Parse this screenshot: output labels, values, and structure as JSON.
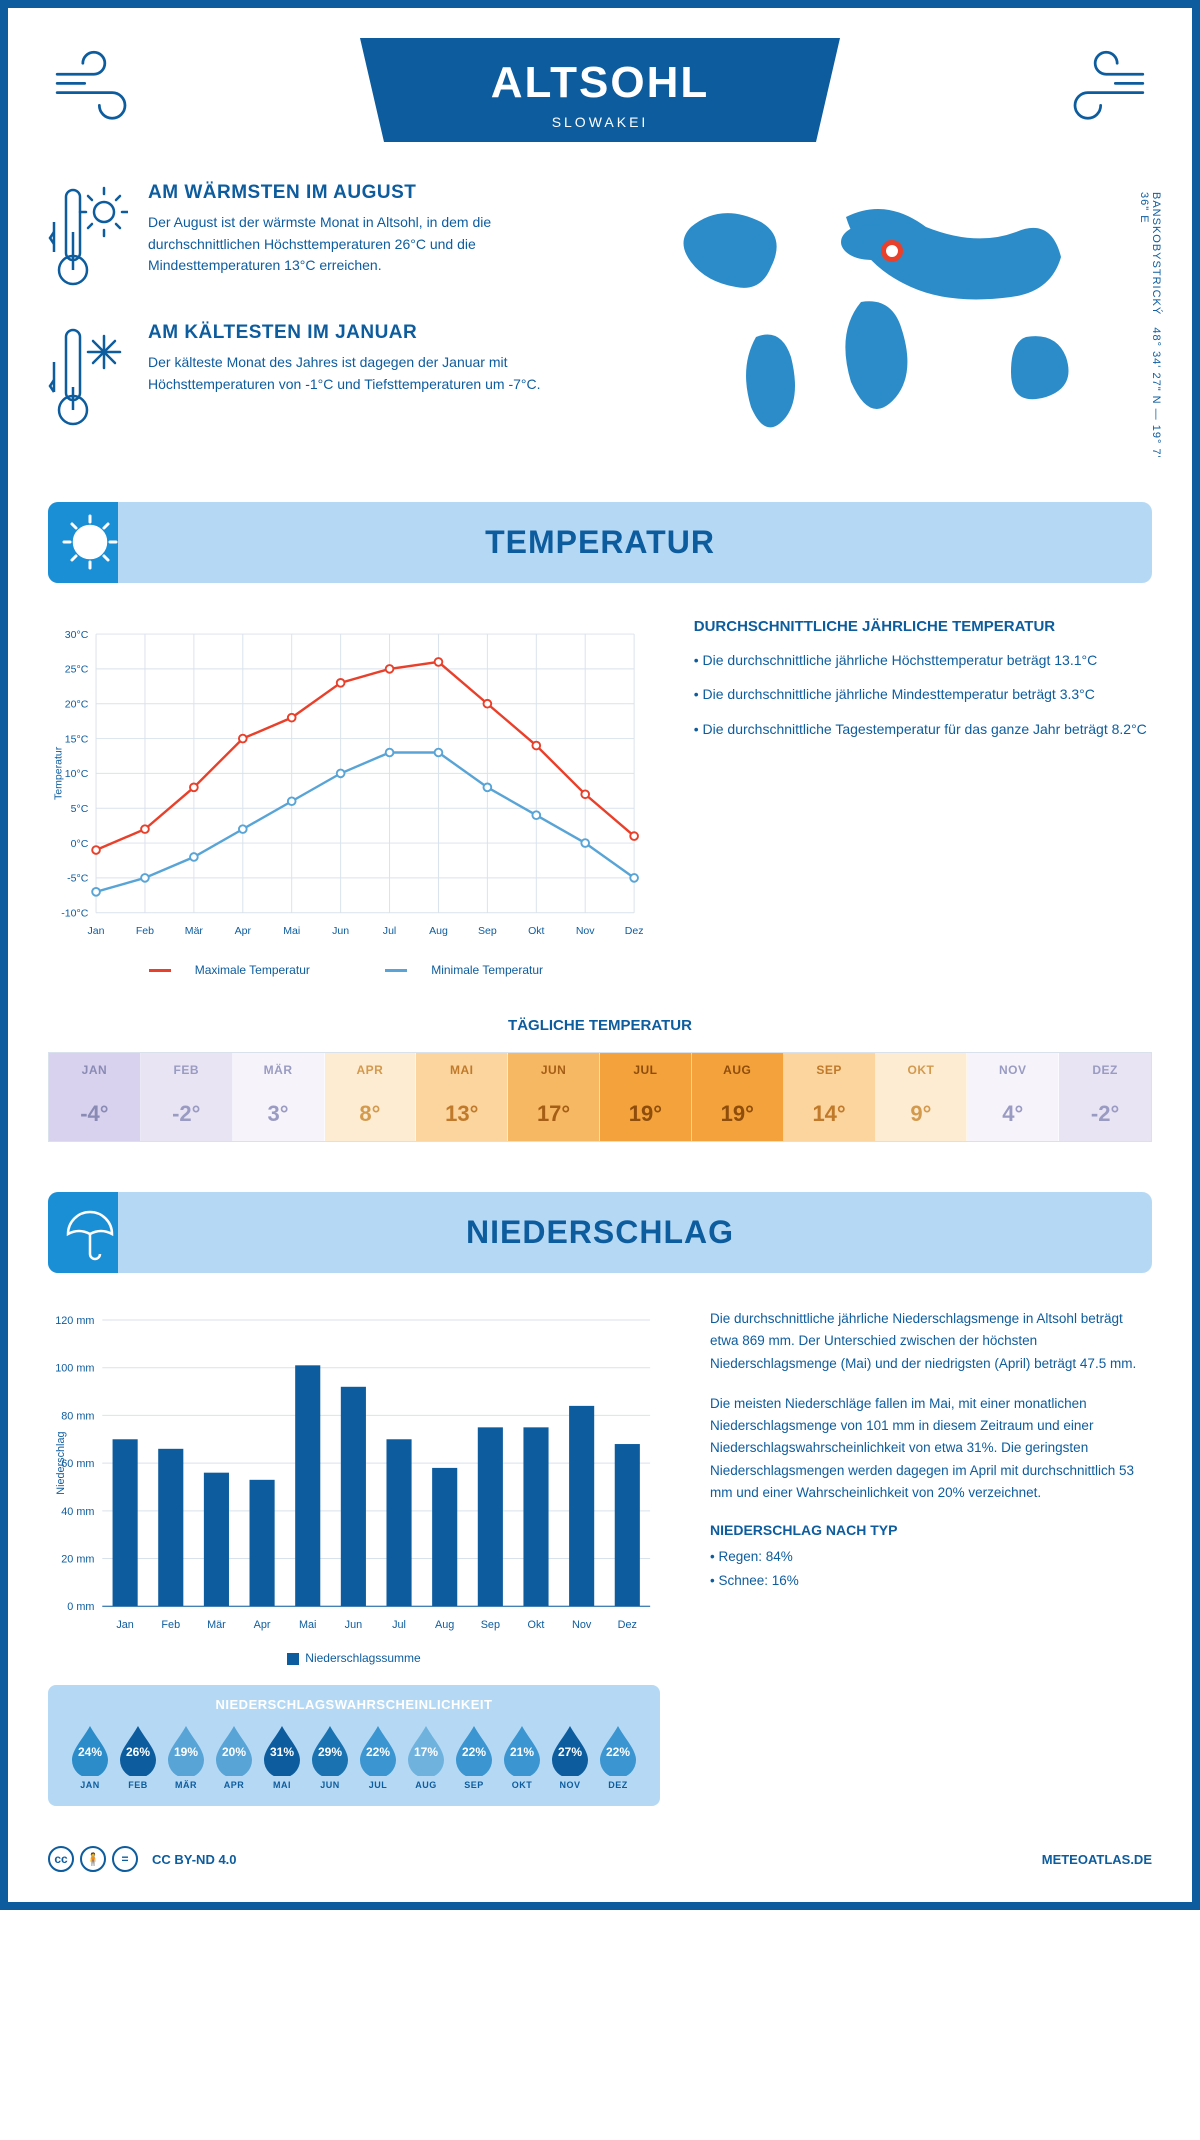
{
  "colors": {
    "primary": "#0d5c9e",
    "lightBlue": "#b5d9f4",
    "midBlue": "#1a8fd6",
    "grid": "#d9e2ec",
    "maxLine": "#e8402a",
    "minLine": "#58a4d6",
    "bar": "#0d5c9e",
    "dropHeader": "#ffffff"
  },
  "header": {
    "title": "ALTSOHL",
    "subtitle": "SLOWAKEI",
    "coordinates": "48° 34' 27\" N — 19° 7' 36\" E",
    "region": "BANSKOBYSTRICKÝ"
  },
  "facts": {
    "warmest": {
      "title": "AM WÄRMSTEN IM AUGUST",
      "body": "Der August ist der wärmste Monat in Altsohl, in dem die durchschnittlichen Höchsttemperaturen 26°C und die Mindesttemperaturen 13°C erreichen."
    },
    "coldest": {
      "title": "AM KÄLTESTEN IM JANUAR",
      "body": "Der kälteste Monat des Jahres ist dagegen der Januar mit Höchsttemperaturen von -1°C und Tiefsttemperaturen um -7°C."
    }
  },
  "temperature": {
    "sectionTitle": "TEMPERATUR",
    "sideTitle": "DURCHSCHNITTLICHE JÄHRLICHE TEMPERATUR",
    "bullets": [
      "• Die durchschnittliche jährliche Höchsttemperatur beträgt 13.1°C",
      "• Die durchschnittliche jährliche Mindesttemperatur beträgt 3.3°C",
      "• Die durchschnittliche Tagestemperatur für das ganze Jahr beträgt 8.2°C"
    ],
    "chart": {
      "months": [
        "Jan",
        "Feb",
        "Mär",
        "Apr",
        "Mai",
        "Jun",
        "Jul",
        "Aug",
        "Sep",
        "Okt",
        "Nov",
        "Dez"
      ],
      "maxSeries": [
        -1,
        2,
        8,
        15,
        18,
        23,
        25,
        26,
        20,
        14,
        7,
        1
      ],
      "minSeries": [
        -7,
        -5,
        -2,
        2,
        6,
        10,
        13,
        13,
        8,
        4,
        0,
        -5
      ],
      "ymin": -10,
      "ymax": 30,
      "ystep": 5,
      "yLabel": "Temperatur",
      "legendMax": "Maximale Temperatur",
      "legendMin": "Minimale Temperatur"
    },
    "dailyTitle": "TÄGLICHE TEMPERATUR",
    "daily": [
      {
        "m": "JAN",
        "v": "-4°",
        "bg": "#d8d2ee",
        "fg": "#8a8bb5"
      },
      {
        "m": "FEB",
        "v": "-2°",
        "bg": "#e8e4f4",
        "fg": "#9a9bc2"
      },
      {
        "m": "MÄR",
        "v": "3°",
        "bg": "#f6f4fa",
        "fg": "#9a9bc2"
      },
      {
        "m": "APR",
        "v": "8°",
        "bg": "#fdecd2",
        "fg": "#d39a4e"
      },
      {
        "m": "MAI",
        "v": "13°",
        "bg": "#fbd49e",
        "fg": "#c07a2a"
      },
      {
        "m": "JUN",
        "v": "17°",
        "bg": "#f7b863",
        "fg": "#a55e15"
      },
      {
        "m": "JUL",
        "v": "19°",
        "bg": "#f4a23b",
        "fg": "#8f4d0c"
      },
      {
        "m": "AUG",
        "v": "19°",
        "bg": "#f4a23b",
        "fg": "#8f4d0c"
      },
      {
        "m": "SEP",
        "v": "14°",
        "bg": "#fbd49e",
        "fg": "#c07a2a"
      },
      {
        "m": "OKT",
        "v": "9°",
        "bg": "#fdecd2",
        "fg": "#d39a4e"
      },
      {
        "m": "NOV",
        "v": "4°",
        "bg": "#f6f4fa",
        "fg": "#9a9bc2"
      },
      {
        "m": "DEZ",
        "v": "-2°",
        "bg": "#e8e4f4",
        "fg": "#9a9bc2"
      }
    ]
  },
  "precipitation": {
    "sectionTitle": "NIEDERSCHLAG",
    "chart": {
      "months": [
        "Jan",
        "Feb",
        "Mär",
        "Apr",
        "Mai",
        "Jun",
        "Jul",
        "Aug",
        "Sep",
        "Okt",
        "Nov",
        "Dez"
      ],
      "values": [
        70,
        66,
        56,
        53,
        101,
        92,
        70,
        58,
        75,
        75,
        84,
        68
      ],
      "ymin": 0,
      "ymax": 120,
      "ystep": 20,
      "yLabel": "Niederschlag",
      "legend": "Niederschlagssumme"
    },
    "body1": "Die durchschnittliche jährliche Niederschlagsmenge in Altsohl beträgt etwa 869 mm. Der Unterschied zwischen der höchsten Niederschlagsmenge (Mai) und der niedrigsten (April) beträgt 47.5 mm.",
    "body2": "Die meisten Niederschläge fallen im Mai, mit einer monatlichen Niederschlagsmenge von 101 mm in diesem Zeitraum und einer Niederschlagswahrscheinlichkeit von etwa 31%. Die geringsten Niederschlagsmengen werden dagegen im April mit durchschnittlich 53 mm und einer Wahrscheinlichkeit von 20% verzeichnet.",
    "typeTitle": "NIEDERSCHLAG NACH TYP",
    "typeBullets": [
      "• Regen: 84%",
      "• Schnee: 16%"
    ],
    "probTitle": "NIEDERSCHLAGSWAHRSCHEINLICHKEIT",
    "prob": [
      {
        "m": "JAN",
        "pct": "24%",
        "shade": "#2b8cc9"
      },
      {
        "m": "FEB",
        "pct": "26%",
        "shade": "#0d5c9e"
      },
      {
        "m": "MÄR",
        "pct": "19%",
        "shade": "#58a4d6"
      },
      {
        "m": "APR",
        "pct": "20%",
        "shade": "#58a4d6"
      },
      {
        "m": "MAI",
        "pct": "31%",
        "shade": "#0d5c9e"
      },
      {
        "m": "JUN",
        "pct": "29%",
        "shade": "#1a72b0"
      },
      {
        "m": "JUL",
        "pct": "22%",
        "shade": "#3a95d0"
      },
      {
        "m": "AUG",
        "pct": "17%",
        "shade": "#6fb2de"
      },
      {
        "m": "SEP",
        "pct": "22%",
        "shade": "#3a95d0"
      },
      {
        "m": "OKT",
        "pct": "21%",
        "shade": "#3a95d0"
      },
      {
        "m": "NOV",
        "pct": "27%",
        "shade": "#0d5c9e"
      },
      {
        "m": "DEZ",
        "pct": "22%",
        "shade": "#3a95d0"
      }
    ]
  },
  "footer": {
    "license": "CC BY-ND 4.0",
    "site": "METEOATLAS.DE"
  }
}
